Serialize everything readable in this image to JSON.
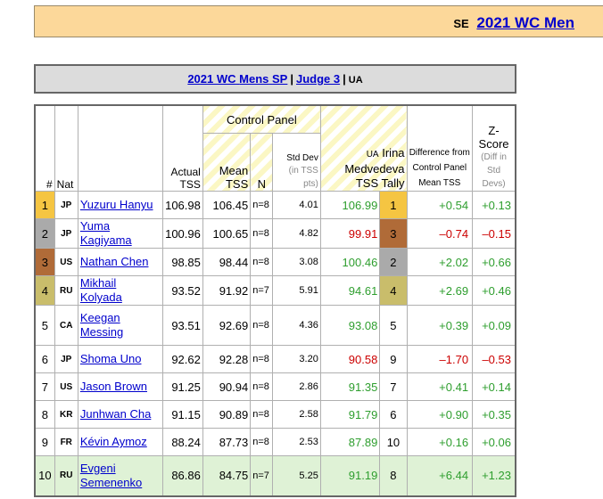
{
  "banner": {
    "code": "SE",
    "link": "2021 WC Men"
  },
  "titlebar": {
    "part1": "2021 WC",
    "part2": "Mens",
    "part3": "SP",
    "sep1": "|",
    "part4": "Judge 3",
    "sep2": "|",
    "code": "UA"
  },
  "headers": {
    "rank": "#",
    "nat": "Nat",
    "actual": "Actual TSS",
    "control_panel": "Control Panel",
    "mean": "Mean TSS",
    "n": "N",
    "stddev_main": "Std Dev",
    "stddev_sub": "(in TSS pts)",
    "judge_code": "UA",
    "judge_name": "Irina Medvedeva TSS Tally",
    "difference": "Difference from Control Panel Mean TSS",
    "zscore_main": "Z-Score",
    "zscore_sub": "(Diff in Std Devs)"
  },
  "rows": [
    {
      "rank": "1",
      "nat": "JP",
      "name": "Yuzuru Hanyu",
      "actual": "106.98",
      "mean": "106.45",
      "n": "n=8",
      "sd": "4.01",
      "tally": "106.99",
      "jrank": "1",
      "diff": "+0.54",
      "z": "+0.13"
    },
    {
      "rank": "2",
      "nat": "JP",
      "name": "Yuma Kagiyama",
      "actual": "100.96",
      "mean": "100.65",
      "n": "n=8",
      "sd": "4.82",
      "tally": "99.91",
      "jrank": "3",
      "diff": "–0.74",
      "z": "–0.15"
    },
    {
      "rank": "3",
      "nat": "US",
      "name": "Nathan Chen",
      "actual": "98.85",
      "mean": "98.44",
      "n": "n=8",
      "sd": "3.08",
      "tally": "100.46",
      "jrank": "2",
      "diff": "+2.02",
      "z": "+0.66"
    },
    {
      "rank": "4",
      "nat": "RU",
      "name": "Mikhail Kolyada",
      "actual": "93.52",
      "mean": "91.92",
      "n": "n=7",
      "sd": "5.91",
      "tally": "94.61",
      "jrank": "4",
      "diff": "+2.69",
      "z": "+0.46"
    },
    {
      "rank": "5",
      "nat": "CA",
      "name": "Keegan Messing",
      "actual": "93.51",
      "mean": "92.69",
      "n": "n=8",
      "sd": "4.36",
      "tally": "93.08",
      "jrank": "5",
      "diff": "+0.39",
      "z": "+0.09"
    },
    {
      "rank": "6",
      "nat": "JP",
      "name": "Shoma Uno",
      "actual": "92.62",
      "mean": "92.28",
      "n": "n=8",
      "sd": "3.20",
      "tally": "90.58",
      "jrank": "9",
      "diff": "–1.70",
      "z": "–0.53"
    },
    {
      "rank": "7",
      "nat": "US",
      "name": "Jason Brown",
      "actual": "91.25",
      "mean": "90.94",
      "n": "n=8",
      "sd": "2.86",
      "tally": "91.35",
      "jrank": "7",
      "diff": "+0.41",
      "z": "+0.14"
    },
    {
      "rank": "8",
      "nat": "KR",
      "name": "Junhwan Cha",
      "actual": "91.15",
      "mean": "90.89",
      "n": "n=8",
      "sd": "2.58",
      "tally": "91.79",
      "jrank": "6",
      "diff": "+0.90",
      "z": "+0.35"
    },
    {
      "rank": "9",
      "nat": "FR",
      "name": "Kévin Aymoz",
      "actual": "88.24",
      "mean": "87.73",
      "n": "n=8",
      "sd": "2.53",
      "tally": "87.89",
      "jrank": "10",
      "diff": "+0.16",
      "z": "+0.06"
    },
    {
      "rank": "10",
      "nat": "RU",
      "name": "Evgeni Semenenko",
      "actual": "86.86",
      "mean": "84.75",
      "n": "n=7",
      "sd": "5.25",
      "tally": "91.19",
      "jrank": "8",
      "diff": "+6.44",
      "z": "+1.23"
    }
  ],
  "colors": {
    "gold": "#f5c542",
    "silver": "#aaaaaa",
    "bronze": "#b06b38",
    "fourth": "#c9bd6b",
    "positive": "#2e9e2e",
    "negative": "#cc0000"
  }
}
